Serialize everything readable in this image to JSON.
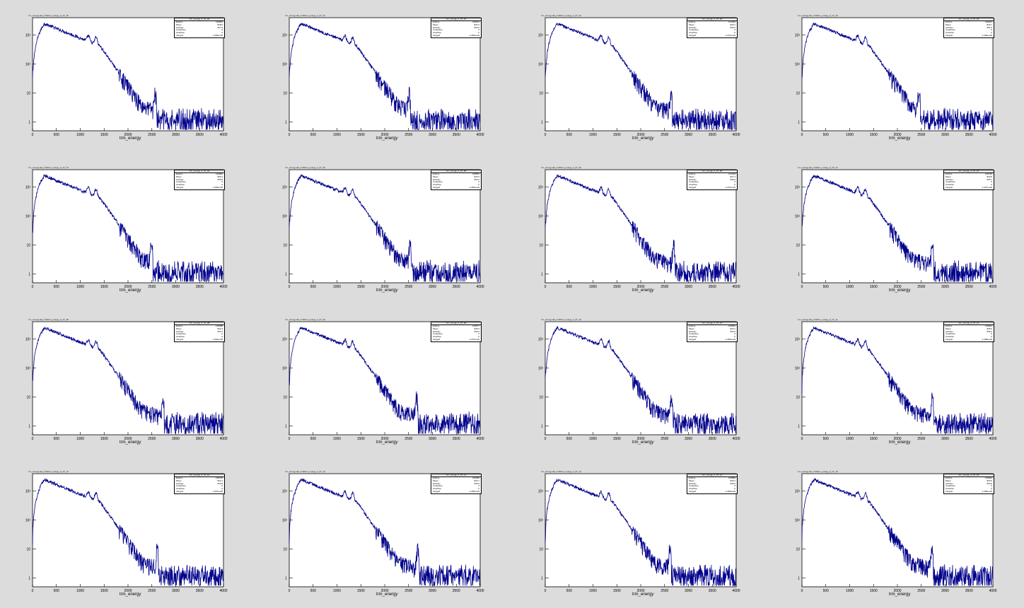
{
  "canvas_bg": "#dcdcdc",
  "line_color": "#00008b",
  "xlabel": "trm_energy",
  "x_ticks": [
    "0",
    "500",
    "1000",
    "1500",
    "2000",
    "2500",
    "3000",
    "3500",
    "4000"
  ],
  "y_ticks": [
    "1",
    "10",
    "10²",
    "10³"
  ],
  "panels": [
    {
      "title": "trm_energy.dat_0 0Wom_energy_0_07_00",
      "stats": {
        "name": "trm_energy_0_07_00",
        "entries": "126819",
        "mean": "838.5",
        "std": "657.6",
        "underflow": "0",
        "overflow": "0",
        "integral": "1.269e+05"
      }
    },
    {
      "title": "trm_energy.dat_0 0Wom_energy_0_07_01",
      "stats": {
        "name": "trm_energy_0_07_01",
        "entries": "126614",
        "mean": "831.9",
        "std": "652.9",
        "underflow": "0",
        "overflow": "0",
        "integral": "1.266e+05"
      }
    },
    {
      "title": "trm_energy.dat_0 0Wom_energy_0_07_02",
      "stats": {
        "name": "trm_energy_0_07_02",
        "entries": "127230",
        "mean": "840.1",
        "std": "660.3",
        "underflow": "0",
        "overflow": "0",
        "integral": "1.272e+05"
      }
    },
    {
      "title": "trm_energy.dat_0 0Wom_energy_0_07_03",
      "stats": {
        "name": "trm_energy_0_07_03",
        "entries": "126437",
        "mean": "829.7",
        "std": "651.0",
        "underflow": "0",
        "overflow": "0",
        "integral": "1.264e+05"
      }
    },
    {
      "title": "trm_energy.dat_0 0Wom_energy_0_07_04",
      "stats": {
        "name": "trm_energy_0_07_04",
        "entries": "126902",
        "mean": "835.2",
        "std": "655.8",
        "underflow": "0",
        "overflow": "0",
        "integral": "1.269e+05"
      }
    },
    {
      "title": "trm_energy.dat_0 0Wom_energy_0_07_05",
      "stats": {
        "name": "trm_energy_0_07_05",
        "entries": "126551",
        "mean": "833.6",
        "std": "654.2",
        "underflow": "0",
        "overflow": "0",
        "integral": "1.266e+05"
      }
    },
    {
      "title": "trm_energy.dat_0 0Wom_energy_0_07_06",
      "stats": {
        "name": "trm_energy_0_07_06",
        "entries": "127018",
        "mean": "837.4",
        "std": "656.9",
        "underflow": "0",
        "overflow": "0",
        "integral": "1.270e+05"
      }
    },
    {
      "title": "trm_energy.dat_0 0Wom_energy_0_07_07",
      "stats": {
        "name": "trm_energy_0_07_07",
        "entries": "126745",
        "mean": "834.8",
        "std": "655.1",
        "underflow": "0",
        "overflow": "0",
        "integral": "1.267e+05"
      }
    },
    {
      "title": "trm_energy.dat_0 0Wom_energy_0_07_08",
      "stats": {
        "name": "trm_energy_0_07_08",
        "entries": "126388",
        "mean": "832.3",
        "std": "653.7",
        "underflow": "0",
        "overflow": "0",
        "integral": "1.264e+05"
      }
    },
    {
      "title": "trm_energy.dat_0 0Wom_energy_0_07_09",
      "stats": {
        "name": "trm_energy_0_07_09",
        "entries": "126977",
        "mean": "836.0",
        "std": "656.3",
        "underflow": "0",
        "overflow": "0",
        "integral": "1.270e+05"
      }
    },
    {
      "title": "trm_energy.dat_0 0Wom_energy_0_07_10",
      "stats": {
        "name": "trm_energy_0_07_10",
        "entries": "126590",
        "mean": "833.1",
        "std": "654.5",
        "underflow": "0",
        "overflow": "0",
        "integral": "1.266e+05"
      }
    },
    {
      "title": "trm_energy.dat_0 0Wom_energy_0_07_11",
      "stats": {
        "name": "trm_energy_0_07_11",
        "entries": "126821",
        "mean": "835.6",
        "std": "655.4",
        "underflow": "0",
        "overflow": "0",
        "integral": "1.268e+05"
      }
    },
    {
      "title": "trm_energy.dat_0 0Wom_energy_0_07_12",
      "stats": {
        "name": "trm_energy_0_07_12",
        "entries": "126703",
        "mean": "834.1",
        "std": "654.8",
        "underflow": "0",
        "overflow": "0",
        "integral": "1.267e+05"
      }
    },
    {
      "title": "trm_energy.dat_0 0Wom_energy_0_07_13",
      "stats": {
        "name": "trm_energy_0_07_13",
        "entries": "126456",
        "mean": "832.7",
        "std": "653.9",
        "underflow": "0",
        "overflow": "0",
        "integral": "1.265e+05"
      }
    },
    {
      "title": "trm_energy.dat_0 0Wom_energy_0_07_14",
      "stats": {
        "name": "trm_energy_0_07_14",
        "entries": "126889",
        "mean": "836.4",
        "std": "656.0",
        "underflow": "0",
        "overflow": "0",
        "integral": "1.269e+05"
      }
    },
    {
      "title": "trm_energy.dat_0 0Wom_energy_0_07_15",
      "stats": {
        "name": "trm_energy_0_07_15",
        "entries": "126634",
        "mean": "833.9",
        "std": "654.6",
        "underflow": "0",
        "overflow": "0",
        "integral": "1.266e+05"
      }
    }
  ],
  "stat_labels": {
    "entries": "Entries",
    "mean": "Mean",
    "std": "Std Dev",
    "underflow": "Underflow",
    "overflow": "Overflow",
    "integral": "Integral"
  },
  "chart_data": {
    "type": "line",
    "xlabel": "trm_energy",
    "xlim": [
      0,
      4000
    ],
    "ylim": [
      0.5,
      4000
    ],
    "y_scale": "log",
    "grid": false,
    "legend": "top-right stats box",
    "features": {
      "peak_x": 250,
      "peak_y": 2500,
      "bumps_x": [
        1170,
        1330
      ],
      "edge_x": 2600
    }
  }
}
